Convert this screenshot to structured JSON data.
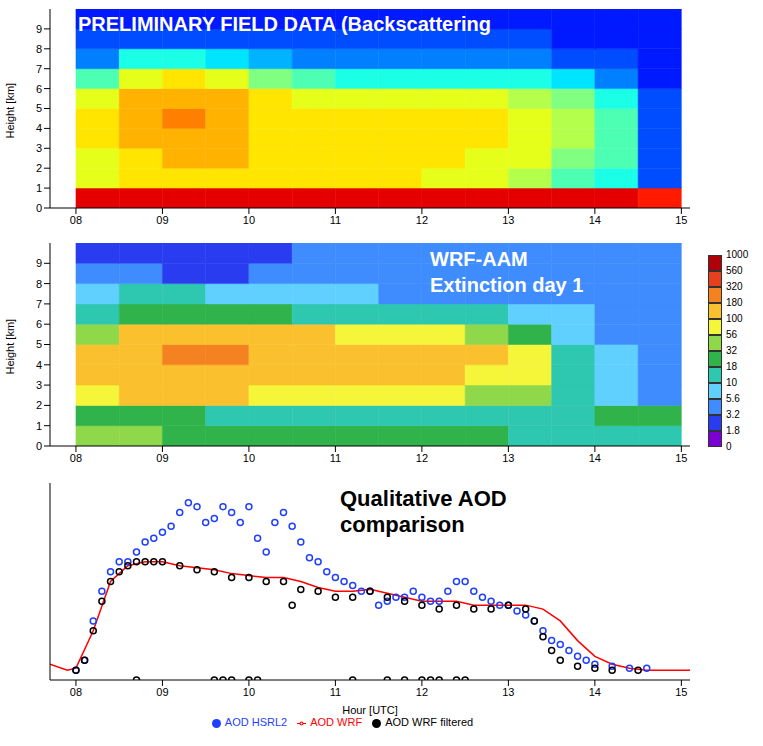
{
  "chart_data": [
    {
      "type": "heatmap",
      "title": "PRELIMINARY FIELD DATA (Backscattering",
      "y_label": "Height [km]",
      "xlim": [
        7.7,
        15.1
      ],
      "xticks": [
        {
          "value": 8,
          "label": "08"
        },
        {
          "value": 9,
          "label": "09"
        },
        10,
        11,
        12,
        13,
        14,
        15
      ],
      "ylim": [
        0,
        10
      ],
      "yticks": [
        0,
        1,
        2,
        3,
        4,
        5,
        6,
        7,
        8,
        9
      ],
      "x_edges": [
        8,
        8.5,
        9,
        9.5,
        10,
        10.5,
        11,
        11.5,
        12,
        12.5,
        13,
        13.5,
        14,
        14.5,
        15
      ],
      "y_edges": [
        0,
        1,
        2,
        3,
        4,
        5,
        6,
        7,
        8,
        9,
        10
      ],
      "zlim": [
        0,
        1
      ],
      "cells": [
        [
          0.9,
          0.9,
          0.9,
          0.9,
          0.9,
          0.9,
          0.9,
          0.9,
          0.9,
          0.9,
          0.9,
          0.9,
          0.9,
          0.85
        ],
        [
          0.6,
          0.65,
          0.65,
          0.65,
          0.65,
          0.65,
          0.65,
          0.65,
          0.6,
          0.6,
          0.55,
          0.45,
          0.4,
          0.2
        ],
        [
          0.6,
          0.65,
          0.7,
          0.7,
          0.65,
          0.65,
          0.65,
          0.65,
          0.65,
          0.6,
          0.6,
          0.5,
          0.45,
          0.2
        ],
        [
          0.65,
          0.7,
          0.7,
          0.7,
          0.65,
          0.65,
          0.65,
          0.65,
          0.65,
          0.65,
          0.6,
          0.55,
          0.45,
          0.2
        ],
        [
          0.65,
          0.7,
          0.75,
          0.7,
          0.65,
          0.65,
          0.65,
          0.65,
          0.65,
          0.65,
          0.6,
          0.55,
          0.45,
          0.2
        ],
        [
          0.6,
          0.7,
          0.7,
          0.7,
          0.65,
          0.6,
          0.6,
          0.6,
          0.6,
          0.6,
          0.55,
          0.5,
          0.4,
          0.2
        ],
        [
          0.45,
          0.6,
          0.65,
          0.6,
          0.5,
          0.45,
          0.4,
          0.4,
          0.4,
          0.4,
          0.4,
          0.35,
          0.25,
          0.15
        ],
        [
          0.25,
          0.4,
          0.4,
          0.35,
          0.3,
          0.25,
          0.25,
          0.25,
          0.25,
          0.25,
          0.25,
          0.2,
          0.2,
          0.15
        ],
        [
          0.2,
          0.2,
          0.2,
          0.2,
          0.2,
          0.2,
          0.2,
          0.2,
          0.2,
          0.2,
          0.2,
          0.15,
          0.15,
          0.15
        ],
        [
          0.15,
          0.15,
          0.15,
          0.15,
          0.15,
          0.15,
          0.15,
          0.15,
          0.15,
          0.15,
          0.15,
          0.15,
          0.15,
          0.15
        ]
      ]
    },
    {
      "type": "heatmap",
      "title": "WRF-AAM",
      "subtitle": "Extinction day 1",
      "y_label": "Height [km]",
      "xlim": [
        7.7,
        15.1
      ],
      "xticks": [
        {
          "value": 8,
          "label": "08"
        },
        {
          "value": 9,
          "label": "09"
        },
        10,
        11,
        12,
        13,
        14,
        15
      ],
      "ylim": [
        0,
        10
      ],
      "yticks": [
        0,
        1,
        2,
        3,
        4,
        5,
        6,
        7,
        8,
        9
      ],
      "x_edges": [
        8,
        8.5,
        9,
        9.5,
        10,
        10.5,
        11,
        11.5,
        12,
        12.5,
        13,
        13.5,
        14,
        14.5,
        15
      ],
      "y_edges": [
        0,
        1,
        2,
        3,
        4,
        5,
        6,
        7,
        8,
        9,
        10
      ],
      "colorbar": {
        "lim": [
          0,
          1000
        ],
        "ticks": [
          0,
          1.8,
          3.2,
          5.6,
          10,
          18,
          32,
          56,
          100,
          180,
          320,
          560,
          1000
        ]
      },
      "cells": [
        [
          40,
          40,
          30,
          25,
          25,
          20,
          20,
          20,
          20,
          20,
          15,
          10,
          10,
          10
        ],
        [
          20,
          30,
          20,
          15,
          12,
          12,
          12,
          12,
          12,
          12,
          12,
          10,
          18,
          18
        ],
        [
          60,
          120,
          120,
          100,
          80,
          70,
          70,
          60,
          60,
          50,
          40,
          10,
          8,
          5
        ],
        [
          100,
          160,
          170,
          150,
          130,
          120,
          110,
          100,
          100,
          90,
          70,
          10,
          8,
          5
        ],
        [
          100,
          170,
          200,
          200,
          140,
          130,
          120,
          110,
          110,
          100,
          70,
          10,
          6,
          5
        ],
        [
          50,
          130,
          150,
          140,
          120,
          100,
          90,
          80,
          70,
          50,
          30,
          8,
          5,
          4
        ],
        [
          10,
          20,
          25,
          25,
          20,
          15,
          15,
          12,
          10,
          10,
          8,
          6,
          5,
          4
        ],
        [
          6,
          10,
          10,
          8,
          6,
          6,
          6,
          5,
          5,
          5,
          5,
          5,
          4,
          4
        ],
        [
          5,
          4,
          3,
          3,
          4,
          5,
          5,
          5,
          5,
          5,
          5,
          5,
          4,
          4
        ],
        [
          2,
          2,
          2,
          2,
          3,
          4,
          4,
          4,
          4,
          4,
          4,
          4,
          4,
          4
        ]
      ]
    },
    {
      "type": "scatter",
      "title": "Qualitative AOD comparison",
      "x_label": "Hour [UTC]",
      "xlim": [
        7.7,
        15.1
      ],
      "xticks": [
        {
          "value": 8,
          "label": "08"
        },
        {
          "value": 9,
          "label": "09"
        },
        10,
        11,
        12,
        13,
        14,
        15
      ],
      "ylim": [
        0,
        1
      ],
      "tick_labels": "x",
      "legend": "bottom",
      "series": [
        {
          "name": "AOD HSRL2",
          "type": "scatter",
          "marker": "circle",
          "color": "#1f3fff",
          "x": [
            8.0,
            8.1,
            8.2,
            8.3,
            8.4,
            8.5,
            8.6,
            8.7,
            8.8,
            8.9,
            9.0,
            9.1,
            9.2,
            9.3,
            9.4,
            9.5,
            9.6,
            9.7,
            9.8,
            9.9,
            10.0,
            10.1,
            10.2,
            10.3,
            10.4,
            10.5,
            10.6,
            10.7,
            10.8,
            10.9,
            11.0,
            11.1,
            11.2,
            11.3,
            11.4,
            11.5,
            11.6,
            11.7,
            11.8,
            11.9,
            12.0,
            12.1,
            12.2,
            12.3,
            12.4,
            12.5,
            12.6,
            12.7,
            12.8,
            12.9,
            13.0,
            13.1,
            13.2,
            13.3,
            13.4,
            13.5,
            13.6,
            13.7,
            13.8,
            13.9,
            14.0,
            14.2,
            14.4,
            14.6
          ],
          "values": [
            0.05,
            0.1,
            0.3,
            0.45,
            0.55,
            0.6,
            0.6,
            0.65,
            0.7,
            0.72,
            0.75,
            0.78,
            0.85,
            0.9,
            0.88,
            0.8,
            0.82,
            0.88,
            0.85,
            0.8,
            0.88,
            0.72,
            0.65,
            0.8,
            0.85,
            0.78,
            0.7,
            0.62,
            0.6,
            0.55,
            0.52,
            0.5,
            0.48,
            0.45,
            0.45,
            0.38,
            0.4,
            0.42,
            0.42,
            0.45,
            0.42,
            0.4,
            0.4,
            0.45,
            0.5,
            0.5,
            0.45,
            0.42,
            0.4,
            0.38,
            0.38,
            0.35,
            0.33,
            0.3,
            0.25,
            0.2,
            0.18,
            0.15,
            0.12,
            0.1,
            0.08,
            0.07,
            0.06,
            0.06
          ]
        },
        {
          "name": "AOD WRF filtered",
          "type": "scatter",
          "marker": "circle",
          "color": "#000000",
          "x": [
            8.0,
            8.1,
            8.2,
            8.3,
            8.4,
            8.5,
            8.6,
            8.7,
            8.8,
            8.9,
            9.0,
            9.2,
            9.4,
            9.6,
            9.8,
            10.0,
            10.2,
            10.4,
            10.6,
            10.8,
            11.0,
            11.2,
            11.4,
            11.6,
            11.8,
            12.0,
            12.2,
            12.4,
            12.6,
            12.8,
            13.0,
            13.2,
            13.3,
            13.4,
            13.5,
            13.6,
            13.8,
            14.0,
            14.2,
            14.5,
            10.5,
            8.7,
            9.6,
            9.7,
            9.8,
            10.0,
            10.1,
            11.2,
            11.6,
            11.8,
            12.0,
            12.1,
            12.2,
            12.4,
            12.5
          ],
          "values": [
            0.05,
            0.1,
            0.25,
            0.4,
            0.5,
            0.55,
            0.58,
            0.6,
            0.6,
            0.6,
            0.6,
            0.58,
            0.56,
            0.55,
            0.52,
            0.52,
            0.5,
            0.5,
            0.46,
            0.45,
            0.42,
            0.42,
            0.45,
            0.42,
            0.4,
            0.38,
            0.36,
            0.38,
            0.36,
            0.36,
            0.38,
            0.36,
            0.3,
            0.22,
            0.15,
            0.1,
            0.07,
            0.06,
            0.05,
            0.05,
            0.38,
            0,
            0,
            0,
            0,
            0,
            0,
            0,
            0,
            0,
            0,
            0,
            0,
            0,
            0
          ]
        },
        {
          "name": "AOD WRF",
          "type": "line",
          "line_style": "solid",
          "color": "#ff0000",
          "x": [
            7.7,
            7.9,
            8.0,
            8.2,
            8.4,
            8.6,
            8.8,
            9.0,
            9.2,
            9.4,
            9.6,
            9.8,
            10.0,
            10.2,
            10.4,
            10.6,
            10.8,
            11.0,
            11.2,
            11.4,
            11.6,
            11.8,
            12.0,
            12.2,
            12.4,
            12.6,
            12.8,
            13.0,
            13.2,
            13.4,
            13.6,
            13.8,
            14.0,
            14.2,
            14.4,
            14.6,
            15.1
          ],
          "values": [
            0.08,
            0.05,
            0.06,
            0.25,
            0.5,
            0.58,
            0.6,
            0.6,
            0.58,
            0.57,
            0.56,
            0.54,
            0.53,
            0.52,
            0.52,
            0.5,
            0.47,
            0.45,
            0.45,
            0.46,
            0.44,
            0.42,
            0.4,
            0.4,
            0.4,
            0.38,
            0.38,
            0.38,
            0.38,
            0.36,
            0.3,
            0.2,
            0.12,
            0.08,
            0.06,
            0.05,
            0.05
          ]
        }
      ]
    }
  ]
}
